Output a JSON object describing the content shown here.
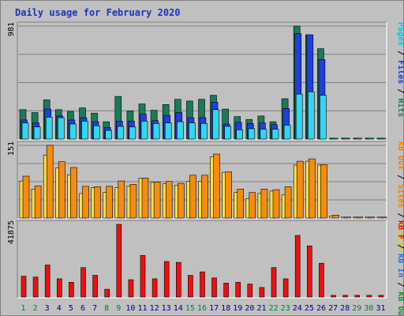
{
  "chart_data": {
    "type": "bar",
    "title": "Daily usage for February 2020",
    "categories": [
      "1",
      "2",
      "3",
      "4",
      "5",
      "6",
      "7",
      "8",
      "9",
      "10",
      "11",
      "12",
      "13",
      "14",
      "15",
      "16",
      "17",
      "18",
      "19",
      "20",
      "21",
      "22",
      "23",
      "24",
      "25",
      "26",
      "27",
      "28",
      "29",
      "30",
      "31"
    ],
    "weekend_days": [
      "1",
      "2",
      "8",
      "9",
      "15",
      "16",
      "22",
      "23",
      "29",
      "30"
    ],
    "panels": [
      {
        "id": "pages-files-hits",
        "ymax": "981",
        "ymax_value": 981,
        "grid": true,
        "axis_label_parts": [
          {
            "text": "Pages",
            "color": "#00c8e8"
          },
          {
            "text": " / ",
            "color": "#000000"
          },
          {
            "text": "Files",
            "color": "#0b3cd0"
          },
          {
            "text": " / ",
            "color": "#000000"
          },
          {
            "text": "Hits",
            "color": "#1a7a5a"
          }
        ],
        "series": [
          {
            "name": "Hits",
            "color": "#1a7a5a",
            "values": [
              255,
              230,
              340,
              255,
              240,
              270,
              225,
              150,
              370,
              245,
              305,
              250,
              300,
              345,
              330,
              345,
              380,
              260,
              195,
              170,
              200,
              150,
              350,
              981,
              905,
              785,
              0,
              0,
              0,
              0,
              0
            ]
          },
          {
            "name": "Files",
            "color": "#1f3fe0",
            "values": [
              165,
              140,
              260,
              200,
              165,
              185,
              150,
              100,
              155,
              155,
              215,
              160,
              205,
              230,
              185,
              185,
              320,
              130,
              145,
              135,
              140,
              125,
              265,
              915,
              905,
              690,
              0,
              0,
              0,
              0,
              0
            ]
          },
          {
            "name": "Pages",
            "color": "#33d6f0",
            "values": [
              140,
              105,
              190,
              185,
              130,
              155,
              115,
              75,
              110,
              105,
              155,
              135,
              140,
              150,
              140,
              135,
              255,
              110,
              80,
              90,
              85,
              85,
              120,
              390,
              410,
              380,
              0,
              0,
              0,
              0,
              0
            ]
          }
        ]
      },
      {
        "id": "kb-out-sites-visits",
        "ymax": "151",
        "ymax_value": 151,
        "grid": true,
        "axis_label_parts": [
          {
            "text": "KB Out",
            "color": "#f08000"
          },
          {
            "text": " / ",
            "color": "#000000"
          },
          {
            "text": "Sites",
            "color": "#f08000"
          },
          {
            "text": " / ",
            "color": "#000000"
          },
          {
            "text": "Visits",
            "color": "#e8c800"
          }
        ],
        "series": [
          {
            "name": "Visits",
            "color": "#ffe040",
            "values": [
              77,
              60,
              131,
              104,
              90,
              51,
              63,
              53,
              63,
              66,
              83,
              74,
              71,
              68,
              76,
              76,
              127,
              95,
              53,
              40,
              51,
              56,
              48,
              110,
              118,
              110,
              4,
              2,
              2,
              2,
              2
            ]
          },
          {
            "name": "Sites",
            "color": "#f58c10",
            "values": [
              87,
              67,
              151,
              117,
              105,
              66,
              65,
              66,
              77,
              70,
              83,
              75,
              76,
              72,
              89,
              89,
              133,
              96,
              60,
              53,
              60,
              59,
              65,
              118,
              123,
              111,
              6,
              2,
              2,
              2,
              2
            ]
          }
        ]
      },
      {
        "id": "kb-f-kb-in-kb-out",
        "ymax": "41875",
        "ymax_value": 41875,
        "grid": false,
        "axis_label_parts": [
          {
            "text": "KB F",
            "color": "#e01010"
          },
          {
            "text": " / ",
            "color": "#000000"
          },
          {
            "text": "KB In",
            "color": "#2a6adc"
          },
          {
            "text": " / ",
            "color": "#000000"
          },
          {
            "text": "KB Out",
            "color": "#1a8a2a"
          }
        ],
        "series": [
          {
            "name": "KB F",
            "color": "#ee1010",
            "values": [
              12000,
              11500,
              18500,
              10500,
              8500,
              17000,
              12500,
              4500,
              41875,
              10000,
              24000,
              10500,
              20500,
              20000,
              12500,
              14500,
              11000,
              8000,
              8500,
              7500,
              5500,
              17000,
              10500,
              35500,
              29500,
              19500,
              1000,
              1000,
              1000,
              1000,
              1000
            ]
          }
        ]
      }
    ]
  }
}
